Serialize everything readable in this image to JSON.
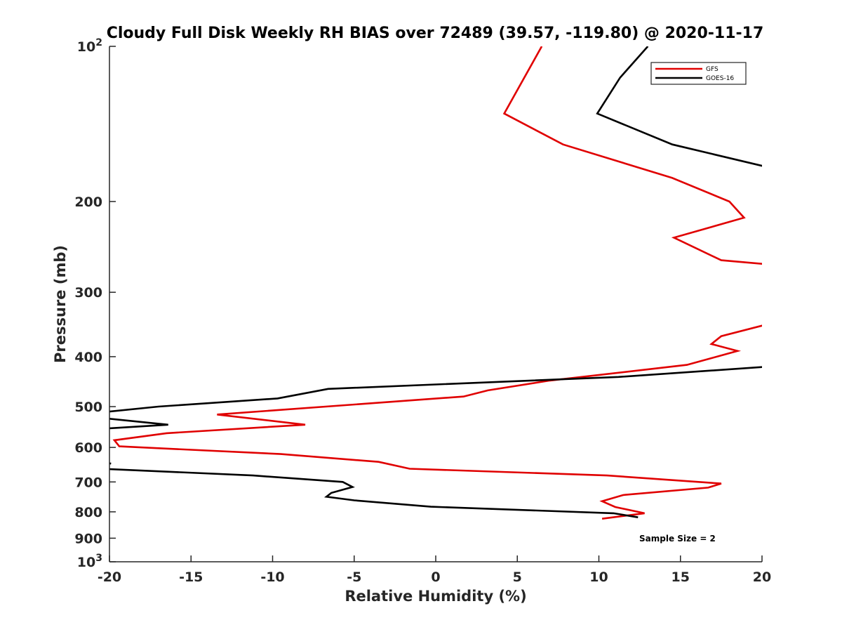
{
  "chart_data": {
    "type": "line",
    "title": "Cloudy Full Disk Weekly RH BIAS over 72489 (39.57, -119.80) @ 2020-11-17",
    "xlabel": "Relative Humidity (%)",
    "ylabel": "Pressure (mb)",
    "xlim": [
      -20,
      20
    ],
    "ylim": [
      100,
      1000
    ],
    "y_scale": "log",
    "y_reversed": true,
    "grid": false,
    "legend_position": "top-right",
    "x_ticks": [
      "-20",
      "-15",
      "-10",
      "-5",
      "0",
      "5",
      "10",
      "15",
      "20"
    ],
    "x_tick_values": [
      -20,
      -15,
      -10,
      -5,
      0,
      5,
      10,
      15,
      20
    ],
    "y_ticks": [
      {
        "value": 100,
        "base": "10",
        "exp": "2"
      },
      {
        "value": 200,
        "label": "200"
      },
      {
        "value": 300,
        "label": "300"
      },
      {
        "value": 400,
        "label": "400"
      },
      {
        "value": 500,
        "label": "500"
      },
      {
        "value": 600,
        "label": "600"
      },
      {
        "value": 700,
        "label": "700"
      },
      {
        "value": 800,
        "label": "800"
      },
      {
        "value": 900,
        "label": "900"
      },
      {
        "value": 1000,
        "base": "10",
        "exp": "3"
      }
    ],
    "annotation": "Sample Size = 2",
    "series": [
      {
        "name": "GFS",
        "color": "#e00000",
        "points": [
          [
            6.5,
            100
          ],
          [
            4.2,
            135
          ],
          [
            7.8,
            155
          ],
          [
            14.5,
            180
          ],
          [
            18.0,
            200
          ],
          [
            18.9,
            215
          ],
          [
            14.6,
            235
          ],
          [
            17.5,
            260
          ],
          [
            20.5,
            265
          ],
          [
            null,
            null
          ],
          [
            20.5,
            345
          ],
          [
            17.5,
            365
          ],
          [
            16.9,
            378
          ],
          [
            18.5,
            390
          ],
          [
            15.4,
            415
          ],
          [
            7.0,
            445
          ],
          [
            3.2,
            465
          ],
          [
            1.7,
            478
          ],
          [
            -13.4,
            518
          ],
          [
            -8.0,
            542
          ],
          [
            -16.5,
            563
          ],
          [
            -19.7,
            581
          ],
          [
            -19.4,
            597
          ],
          [
            -9.5,
            618
          ],
          [
            -3.5,
            640
          ],
          [
            -1.6,
            660
          ],
          [
            10.5,
            680
          ],
          [
            17.5,
            705
          ],
          [
            16.7,
            718
          ],
          [
            11.5,
            742
          ],
          [
            10.2,
            763
          ],
          [
            11.0,
            783
          ],
          [
            12.8,
            805
          ],
          [
            10.2,
            825
          ]
        ]
      },
      {
        "name": "GOES-16",
        "color": "#000000",
        "points": [
          [
            13.0,
            100
          ],
          [
            11.3,
            115
          ],
          [
            9.9,
            135
          ],
          [
            14.5,
            155
          ],
          [
            20.5,
            172
          ],
          [
            null,
            null
          ],
          [
            20.5,
            418
          ],
          [
            11.2,
            438
          ],
          [
            -6.6,
            462
          ],
          [
            -9.7,
            482
          ],
          [
            -17.0,
            500
          ],
          [
            -20.5,
            513
          ],
          [
            null,
            null
          ],
          [
            -20.5,
            526
          ],
          [
            -16.4,
            542
          ],
          [
            -20.5,
            552
          ],
          [
            null,
            null
          ],
          [
            -20.5,
            640
          ],
          [
            -19.9,
            645
          ],
          [
            null,
            null
          ],
          [
            -20.5,
            660
          ],
          [
            -11.2,
            680
          ],
          [
            -5.7,
            700
          ],
          [
            -5.1,
            716
          ],
          [
            -6.4,
            735
          ],
          [
            -6.7,
            748
          ],
          [
            -5.0,
            760
          ],
          [
            -0.3,
            782
          ],
          [
            10.9,
            805
          ],
          [
            12.4,
            820
          ]
        ]
      }
    ]
  }
}
